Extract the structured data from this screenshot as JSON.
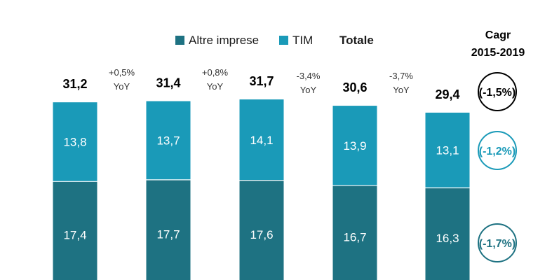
{
  "chart_data": {
    "type": "bar",
    "stacked": true,
    "categories": [
      "",
      "",
      "",
      "",
      ""
    ],
    "series": [
      {
        "name": "Altre imprese",
        "color": "#1e7282",
        "values": [
          17.4,
          17.7,
          17.6,
          16.7,
          16.3
        ],
        "value_labels": [
          "17,4",
          "17,7",
          "17,6",
          "16,7",
          "16,3"
        ]
      },
      {
        "name": "TIM",
        "color": "#1a9ab8",
        "values": [
          13.8,
          13.7,
          14.1,
          13.9,
          13.1
        ],
        "value_labels": [
          "13,8",
          "13,7",
          "14,1",
          "13,9",
          "13,1"
        ]
      }
    ],
    "totals": {
      "label": "Totale",
      "values": [
        31.2,
        31.4,
        31.7,
        30.6,
        29.4
      ],
      "value_labels": [
        "31,2",
        "31,4",
        "31,7",
        "30,6",
        "29,4"
      ]
    },
    "yoy": [
      {
        "line1": "+0,5%",
        "line2": "YoY"
      },
      {
        "line1": "+0,8%",
        "line2": "YoY"
      },
      {
        "line1": "-3,4%",
        "line2": "YoY"
      },
      {
        "line1": "-3,7%",
        "line2": "YoY"
      }
    ],
    "cagr": {
      "title_line1": "Cagr",
      "title_line2": "2015-2019",
      "items": [
        {
          "target": "total",
          "label": "(-1,5%)",
          "color": "#000000"
        },
        {
          "target": "TIM",
          "label": "(-1,2%)",
          "color": "#1a9ab8"
        },
        {
          "target": "Altre imprese",
          "label": "(-1,7%)",
          "color": "#1e7282"
        }
      ]
    },
    "legend_position": "top-center",
    "grid": false
  }
}
